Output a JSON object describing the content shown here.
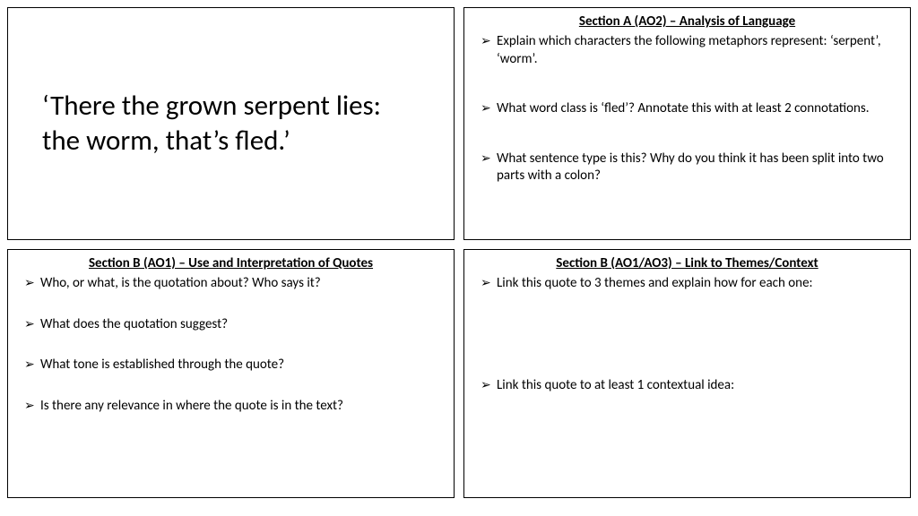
{
  "colors": {
    "text": "#000000",
    "background": "#ffffff",
    "border": "#000000"
  },
  "quote": "‘There the grown serpent lies: the worm, that’s fled.’",
  "sectionA": {
    "title": "Section A (AO2) – Analysis of Language",
    "q1": "Explain which characters the following metaphors represent: ‘serpent’, ‘worm’.",
    "q2": "What word class is ‘fled’? Annotate this with at least 2 connotations.",
    "q3": "What sentence type is this? Why do you think it has been split into two parts with a colon?"
  },
  "sectionB1": {
    "title": "Section B (AO1) – Use and Interpretation of Quotes",
    "q1": "Who, or what, is the quotation about? Who says it?",
    "q2": "What does the quotation suggest?",
    "q3": "What tone is established through the quote?",
    "q4": "Is there any relevance in where the quote is in the text?"
  },
  "sectionB2": {
    "title": "Section B (AO1/AO3) – Link to Themes/Context",
    "q1": "Link this quote to 3 themes and explain how for each one:",
    "q2": "Link this quote to at least 1 contextual idea:"
  }
}
